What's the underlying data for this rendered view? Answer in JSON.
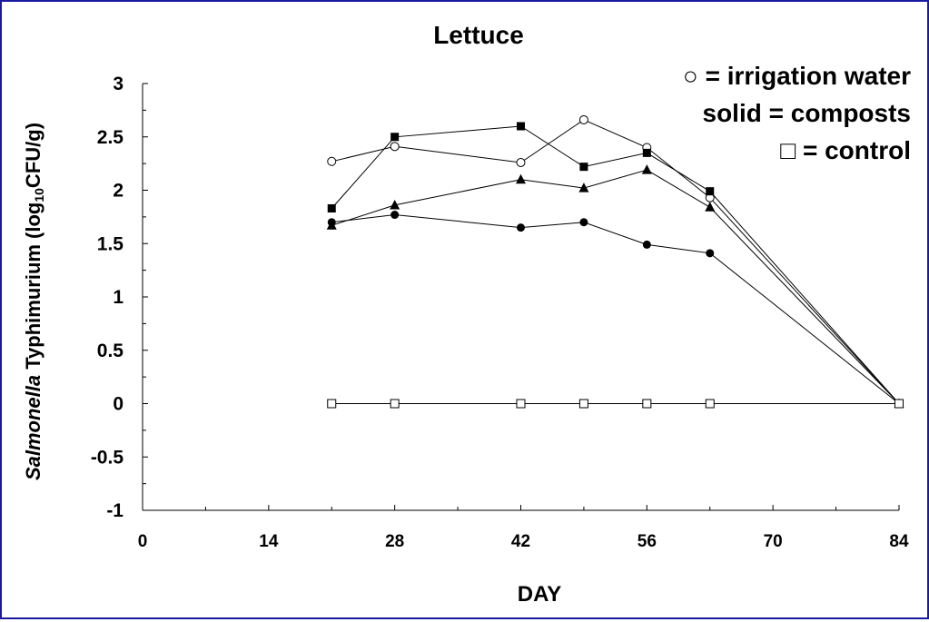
{
  "chart_data": {
    "type": "line",
    "title": "Lettuce",
    "xlabel": "DAY",
    "ylabel_italic": "Salmonella",
    "ylabel_rest": " Typhimurium (log",
    "ylabel_sub": "10",
    "ylabel_end": "CFU/g)",
    "xlim": [
      0,
      84
    ],
    "ylim": [
      -1,
      3
    ],
    "x_ticks": [
      "0",
      "14",
      "28",
      "42",
      "56",
      "70",
      "84"
    ],
    "y_ticks": [
      "3",
      "2.5",
      "2",
      "1.5",
      "1",
      "0.5",
      "0",
      "-0.5",
      "-1"
    ],
    "legend": {
      "line1": "○ = irrigation water",
      "line2": "solid = composts",
      "line3": "□  = control"
    },
    "series": [
      {
        "marker": "open-circle",
        "x": [
          21,
          28,
          42,
          49,
          56,
          63,
          84
        ],
        "values": [
          2.27,
          2.41,
          2.26,
          2.66,
          2.4,
          1.93,
          0
        ]
      },
      {
        "marker": "filled-square",
        "x": [
          21,
          28,
          42,
          49,
          56,
          63,
          84
        ],
        "values": [
          1.83,
          2.5,
          2.6,
          2.22,
          2.35,
          1.99,
          0
        ]
      },
      {
        "marker": "filled-triangle",
        "x": [
          21,
          28,
          42,
          49,
          56,
          63,
          84
        ],
        "values": [
          1.67,
          1.86,
          2.1,
          2.02,
          2.19,
          1.84,
          0
        ]
      },
      {
        "marker": "filled-circle",
        "x": [
          21,
          28,
          42,
          49,
          56,
          63,
          84
        ],
        "values": [
          1.7,
          1.77,
          1.65,
          1.7,
          1.49,
          1.41,
          0
        ]
      },
      {
        "marker": "open-square",
        "x": [
          21,
          28,
          42,
          49,
          56,
          63,
          84
        ],
        "values": [
          0,
          0,
          0,
          0,
          0,
          0,
          0
        ]
      }
    ]
  }
}
